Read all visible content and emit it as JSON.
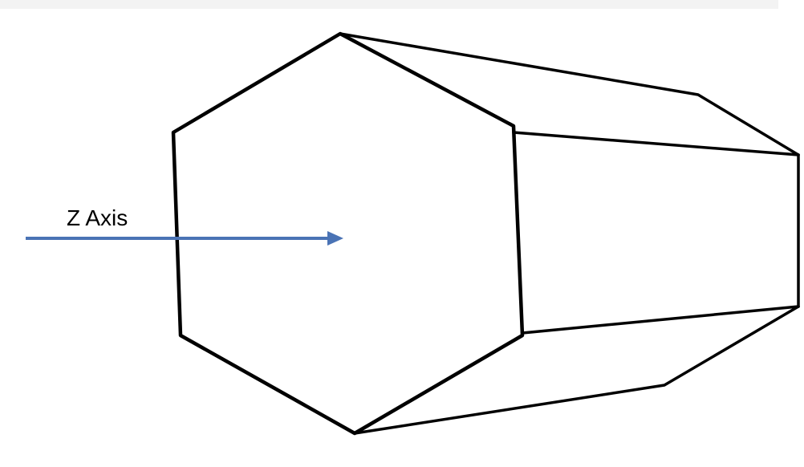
{
  "diagram": {
    "axis": {
      "label": "Z Axis",
      "color": "#4a73b5"
    },
    "shape": "hexagonal-prism",
    "stroke_color": "#000000"
  }
}
